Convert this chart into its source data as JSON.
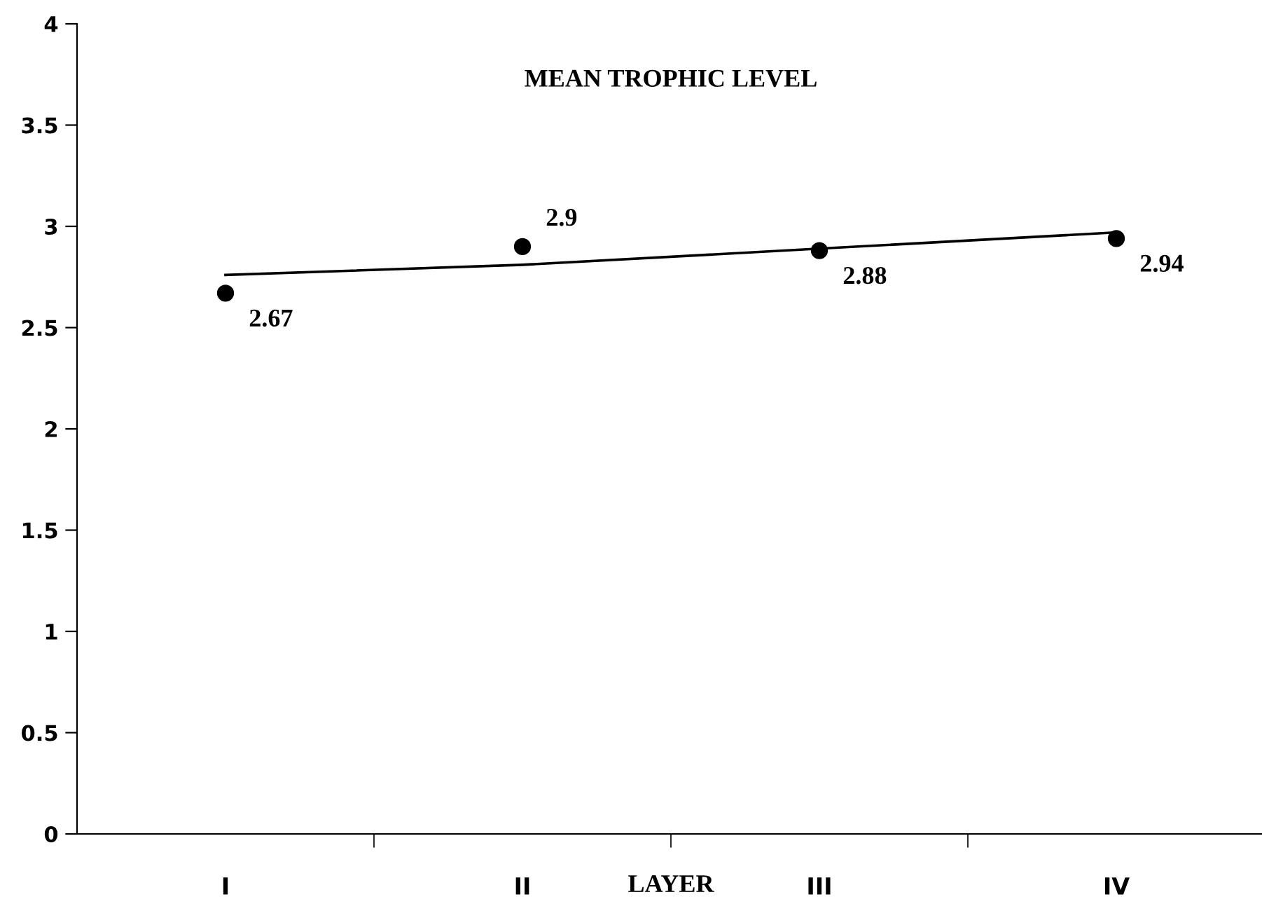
{
  "chart_data": {
    "type": "scatter",
    "title": "MEAN TROPHIC LEVEL",
    "xlabel": "LAYER",
    "categories": [
      "I",
      "II",
      "III",
      "IV"
    ],
    "series": [
      {
        "color": "#000000",
        "values": [
          2.67,
          2.9,
          2.88,
          2.94
        ],
        "value_labels": [
          "2.67",
          "2.9",
          "2.88",
          "2.94"
        ],
        "marker": "circle"
      },
      {
        "type": "line",
        "color": "#000000",
        "values": [
          2.76,
          2.81,
          2.89,
          2.97
        ],
        "marker": "none",
        "line_style": "solid"
      }
    ],
    "ylim": [
      0,
      4
    ],
    "yticks": [
      0,
      0.5,
      1,
      1.5,
      2,
      2.5,
      3,
      3.5,
      4
    ],
    "grid": false,
    "legend": false
  }
}
